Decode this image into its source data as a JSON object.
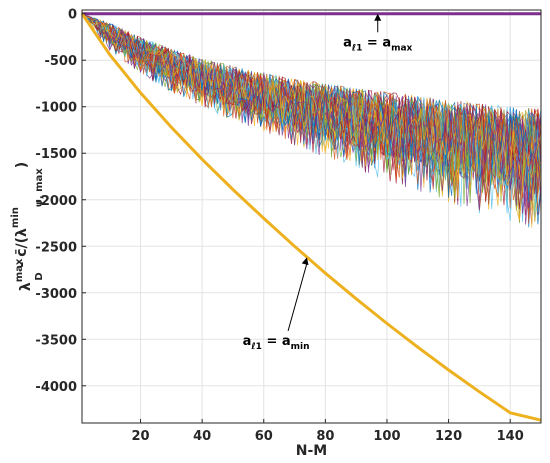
{
  "chart_data": {
    "type": "line",
    "title": "",
    "xlabel": "N-M",
    "ylabel": {
      "lambda": "λ",
      "lambda_sub": "D",
      "lambda_sup": "max",
      "minus_c": " - c̄/(λ",
      "psi_sub": "ψ, max",
      "psi_sup": "min",
      "close": ")"
    },
    "xlim": [
      1,
      150
    ],
    "ylim": [
      -4400,
      40
    ],
    "xticks": [
      20,
      40,
      60,
      80,
      100,
      120,
      140
    ],
    "yticks": [
      0,
      -500,
      -1000,
      -1500,
      -2000,
      -2500,
      -3000,
      -3500,
      -4000
    ],
    "grid": true,
    "series": [
      {
        "role": "a_max",
        "color": "#7E2F8E",
        "x": [
          1,
          150
        ],
        "y": [
          0,
          0
        ]
      },
      {
        "role": "a_min",
        "color": "#EDB120",
        "x": [
          1,
          10,
          20,
          30,
          40,
          50,
          60,
          70,
          80,
          90,
          100,
          110,
          120,
          130,
          140,
          150
        ],
        "y": [
          0,
          -440,
          -850,
          -1220,
          -1565,
          -1890,
          -2200,
          -2500,
          -2790,
          -3065,
          -3330,
          -3585,
          -3830,
          -4065,
          -4290,
          -4370
        ]
      },
      {
        "role": "random_trials_band",
        "colors": [
          "#0072BD",
          "#D95319",
          "#EDB120",
          "#7E2F8E",
          "#77AC30",
          "#4DBEEE",
          "#A2142F"
        ],
        "x": [
          1,
          10,
          20,
          30,
          40,
          50,
          60,
          70,
          80,
          90,
          100,
          110,
          120,
          130,
          140,
          150
        ],
        "y_upper": [
          0,
          -100,
          -250,
          -380,
          -480,
          -560,
          -630,
          -700,
          -750,
          -800,
          -840,
          -880,
          -920,
          -960,
          -1000,
          -1020
        ],
        "y_mean": [
          0,
          -200,
          -400,
          -550,
          -680,
          -800,
          -900,
          -1000,
          -1080,
          -1160,
          -1230,
          -1300,
          -1360,
          -1420,
          -1480,
          -1530
        ],
        "y_lower": [
          0,
          -320,
          -550,
          -720,
          -870,
          -1000,
          -1120,
          -1230,
          -1340,
          -1440,
          -1540,
          -1630,
          -1720,
          -1810,
          -1900,
          -1960
        ],
        "y_min_extreme": [
          0,
          -400,
          -650,
          -850,
          -1000,
          -1150,
          -1290,
          -1420,
          -1550,
          -1680,
          -1800,
          -1920,
          -2030,
          -2150,
          -2250,
          -2330
        ]
      }
    ],
    "annotations": [
      {
        "id": "amax",
        "base": "a",
        "sub": "ℓ1",
        "eq": " = a",
        "sub2": "max",
        "x": 97,
        "y": -350,
        "arrow_to_x": 97,
        "arrow_to_y": 0
      },
      {
        "id": "amin",
        "base": "a",
        "sub": "ℓ1",
        "eq": " = a",
        "sub2": "min",
        "x": 64,
        "y": -3560,
        "arrow_to_x": 74,
        "arrow_to_y": -2620
      }
    ]
  }
}
